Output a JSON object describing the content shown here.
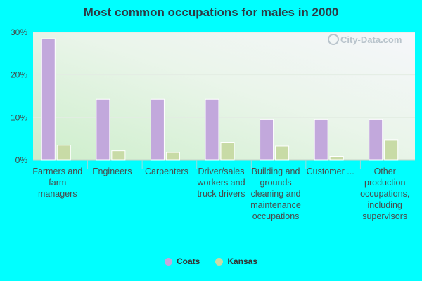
{
  "chart_data": {
    "type": "bar",
    "title": "Most common occupations for males in 2000",
    "categories": [
      "Farmers and farm managers",
      "Engineers",
      "Carpenters",
      "Driver/sales workers and truck drivers",
      "Building and grounds cleaning and maintenance occupations",
      "Customer ...",
      "Other production occupations, including supervisors"
    ],
    "series": [
      {
        "name": "Coats",
        "color": "#c2a8dc",
        "values": [
          28.5,
          14.3,
          14.3,
          14.3,
          9.5,
          9.5,
          9.5
        ]
      },
      {
        "name": "Kansas",
        "color": "#c8dba6",
        "values": [
          3.5,
          2.2,
          1.8,
          4.2,
          3.3,
          0.9,
          4.8
        ]
      }
    ],
    "y_ticks": [
      "0%",
      "10%",
      "20%",
      "30%"
    ],
    "y_tick_values": [
      0,
      10,
      20,
      30
    ],
    "ylim": [
      0,
      30
    ],
    "grid": true,
    "legend_position": "bottom-center",
    "watermark": "City-Data.com"
  }
}
